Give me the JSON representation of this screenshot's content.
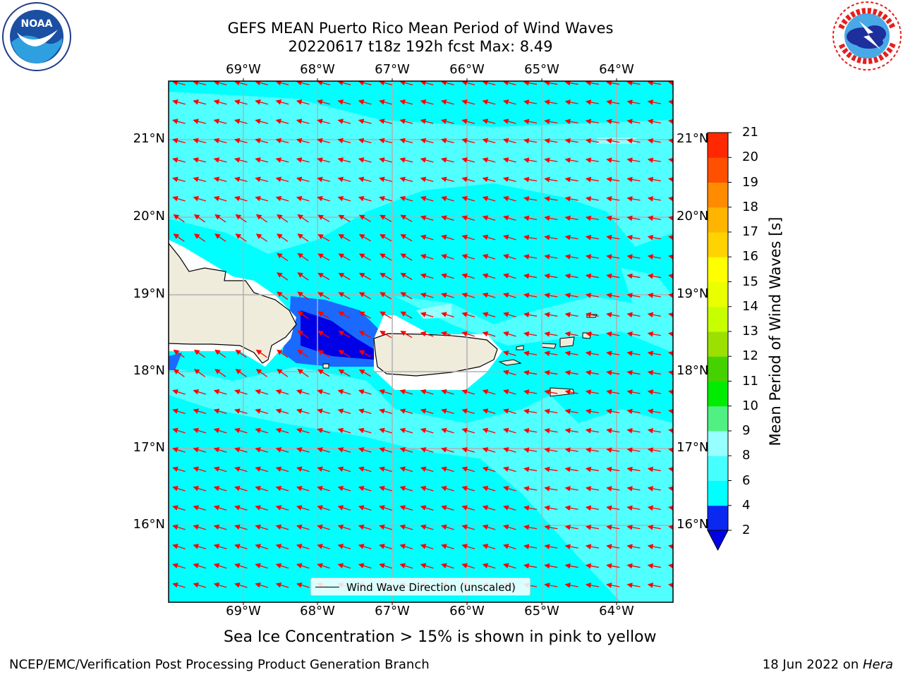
{
  "header": {
    "title_line1": "GEFS MEAN Puerto Rico Mean Period of Wind Waves",
    "title_line2": "20220617 t18z 192h fcst   Max: 8.49"
  },
  "logos": {
    "left": {
      "name": "noaa-logo",
      "text": "NOAA"
    },
    "right": {
      "name": "national-weather-service-logo"
    }
  },
  "map": {
    "lon_labels": [
      "69°W",
      "68°W",
      "67°W",
      "66°W",
      "65°W",
      "64°W"
    ],
    "lat_labels": [
      "21°N",
      "20°N",
      "19°N",
      "18°N",
      "17°N",
      "16°N"
    ],
    "legend_text": "Wind Wave Direction (unscaled)",
    "colors": {
      "land": "#efecdc",
      "coast": "#000000",
      "grid": "#b0b0b0",
      "arrow": "#ff0000",
      "masked": "#ffffff"
    }
  },
  "chart_data": {
    "type": "heatmap",
    "title": "GEFS MEAN Puerto Rico Mean Period of Wind Waves",
    "subtitle": "20220617 t18z 192h fcst   Max: 8.49",
    "max_value": 8.49,
    "lon_range": [
      -70,
      -63.25
    ],
    "lat_range": [
      15,
      21.75
    ],
    "colorbar": {
      "label": "Mean Period of Wind Waves [s]",
      "ticks": [
        2,
        4,
        6,
        8,
        9,
        10,
        11,
        12,
        13,
        14,
        15,
        16,
        17,
        18,
        19,
        20,
        21
      ],
      "colors": [
        "#0a28f0",
        "#00ffff",
        "#46ffff",
        "#96ffff",
        "#50f082",
        "#00ec00",
        "#46d200",
        "#9be000",
        "#c8ff00",
        "#eaff00",
        "#ffff00",
        "#ffd200",
        "#ffb400",
        "#ff8c00",
        "#ff5000",
        "#ff2800",
        "#ff0000"
      ],
      "under_color": "#0000e6",
      "extend": "min"
    },
    "levels_present": {
      "below_2": "#0000e6",
      "2_to_4": "#1a6aff",
      "4_to_6": "#00ffff",
      "6_to_8": "#50ffff"
    },
    "vector_field": "Wind Wave Direction (unscaled)"
  },
  "footer": {
    "ice_note": "Sea Ice Concentration > 15% is shown in pink to yellow",
    "left": "NCEP/EMC/Verification Post Processing Product Generation Branch",
    "right_date": "18 Jun 2022 on ",
    "right_machine": "Hera"
  }
}
